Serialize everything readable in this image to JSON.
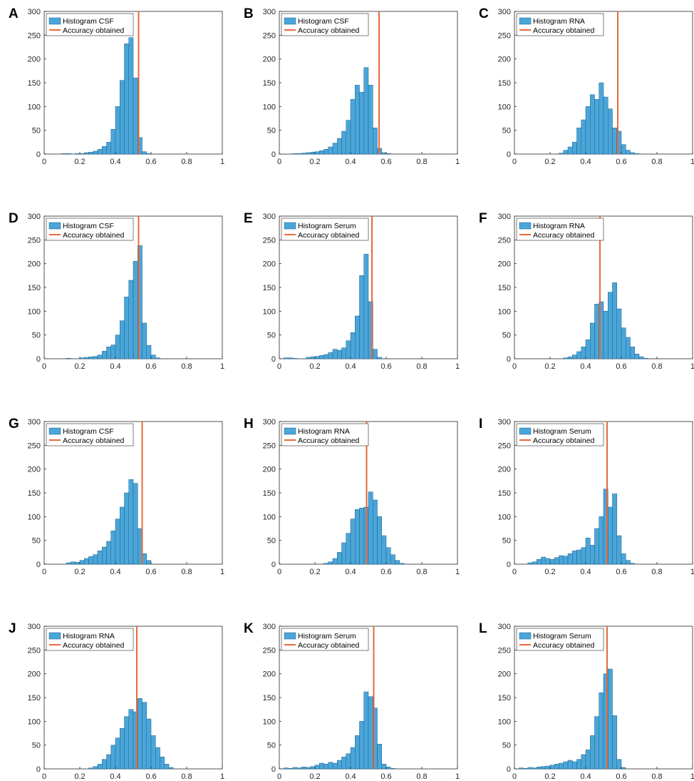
{
  "colors": {
    "bar_fill": "#4aa6d9",
    "bar_edge": "#1f5e8a",
    "accuracy_line": "#e8693a",
    "axis": "#262626"
  },
  "legend_line_label": "Accuracy obtained",
  "chart_data": [
    {
      "panel": "A",
      "type": "bar",
      "legend": [
        "Histogram CSF",
        "Accuracy obtained"
      ],
      "accuracy": 0.53,
      "bin_start": 0.1,
      "bin_width": 0.025,
      "counts": [
        1,
        1,
        0,
        1,
        1,
        3,
        4,
        6,
        10,
        16,
        25,
        52,
        100,
        155,
        232,
        245,
        160,
        35,
        5,
        1
      ],
      "xlim": [
        0,
        1
      ],
      "ylim": [
        0,
        300
      ],
      "xticks": [
        "0",
        "0.2",
        "0.4",
        "0.6",
        "0.8",
        "1"
      ],
      "yticks": [
        "0",
        "50",
        "100",
        "150",
        "200",
        "250",
        "300"
      ]
    },
    {
      "panel": "B",
      "type": "bar",
      "legend": [
        "Histogram CSF",
        "Accuracy obtained"
      ],
      "accuracy": 0.56,
      "bin_start": 0.075,
      "bin_width": 0.025,
      "counts": [
        1,
        1,
        2,
        3,
        4,
        5,
        7,
        10,
        15,
        23,
        33,
        48,
        71,
        115,
        145,
        130,
        182,
        145,
        55,
        12,
        3,
        1
      ],
      "xlim": [
        0,
        1
      ],
      "ylim": [
        0,
        300
      ],
      "xticks": [
        "0",
        "0.2",
        "0.4",
        "0.6",
        "0.8",
        "1"
      ],
      "yticks": [
        "0",
        "50",
        "100",
        "150",
        "200",
        "250",
        "300"
      ]
    },
    {
      "panel": "C",
      "type": "bar",
      "legend": [
        "Histogram RNA",
        "Accuracy obtained"
      ],
      "accuracy": 0.58,
      "bin_start": 0.25,
      "bin_width": 0.025,
      "counts": [
        2,
        8,
        15,
        25,
        55,
        72,
        100,
        125,
        115,
        150,
        120,
        95,
        55,
        48,
        20,
        8,
        3,
        1
      ],
      "xlim": [
        0,
        1
      ],
      "ylim": [
        0,
        300
      ],
      "xticks": [
        "0",
        "0.2",
        "0.4",
        "0.6",
        "0.8",
        "1"
      ],
      "yticks": [
        "0",
        "50",
        "100",
        "150",
        "200",
        "250",
        "300"
      ]
    },
    {
      "panel": "D",
      "type": "bar",
      "legend": [
        "Histogram CSF",
        "Accuracy obtained"
      ],
      "accuracy": 0.53,
      "bin_start": 0.125,
      "bin_width": 0.025,
      "counts": [
        1,
        0,
        0,
        2,
        3,
        4,
        5,
        8,
        16,
        25,
        29,
        50,
        80,
        130,
        165,
        205,
        238,
        75,
        28,
        8,
        2
      ],
      "xlim": [
        0,
        1
      ],
      "ylim": [
        0,
        300
      ],
      "xticks": [
        "0",
        "0.2",
        "0.4",
        "0.6",
        "0.8",
        "1"
      ],
      "yticks": [
        "0",
        "50",
        "100",
        "150",
        "200",
        "250",
        "300"
      ]
    },
    {
      "panel": "E",
      "type": "bar",
      "legend": [
        "Histogram Serum",
        "Accuracy obtained"
      ],
      "accuracy": 0.52,
      "bin_start": 0.025,
      "bin_width": 0.025,
      "counts": [
        2,
        2,
        1,
        0,
        0,
        3,
        4,
        5,
        7,
        9,
        13,
        20,
        18,
        23,
        38,
        55,
        90,
        175,
        220,
        120,
        20,
        3
      ],
      "xlim": [
        0,
        1
      ],
      "ylim": [
        0,
        300
      ],
      "xticks": [
        "0",
        "0.2",
        "0.4",
        "0.6",
        "0.8",
        "1"
      ],
      "yticks": [
        "0",
        "50",
        "100",
        "150",
        "200",
        "250",
        "300"
      ]
    },
    {
      "panel": "F",
      "type": "bar",
      "legend": [
        "Histogram RNA",
        "Accuracy obtained"
      ],
      "accuracy": 0.48,
      "bin_start": 0.275,
      "bin_width": 0.025,
      "counts": [
        2,
        4,
        8,
        15,
        25,
        40,
        75,
        115,
        120,
        100,
        140,
        160,
        105,
        65,
        45,
        25,
        10,
        4,
        1
      ],
      "xlim": [
        0,
        1
      ],
      "ylim": [
        0,
        300
      ],
      "xticks": [
        "0",
        "0.2",
        "0.4",
        "0.6",
        "0.8",
        "1"
      ],
      "yticks": [
        "0",
        "50",
        "100",
        "150",
        "200",
        "250",
        "300"
      ]
    },
    {
      "panel": "G",
      "type": "bar",
      "legend": [
        "Histogram CSF",
        "Accuracy obtained"
      ],
      "accuracy": 0.55,
      "bin_start": 0.125,
      "bin_width": 0.025,
      "counts": [
        3,
        5,
        4,
        8,
        12,
        16,
        20,
        28,
        36,
        48,
        70,
        95,
        120,
        150,
        178,
        170,
        75,
        22,
        8
      ],
      "xlim": [
        0,
        1
      ],
      "ylim": [
        0,
        300
      ],
      "xticks": [
        "0",
        "0.2",
        "0.4",
        "0.6",
        "0.8",
        "1"
      ],
      "yticks": [
        "0",
        "50",
        "100",
        "150",
        "200",
        "250",
        "300"
      ]
    },
    {
      "panel": "H",
      "type": "bar",
      "legend": [
        "Histogram RNA",
        "Accuracy obtained"
      ],
      "accuracy": 0.49,
      "bin_start": 0.25,
      "bin_width": 0.025,
      "counts": [
        2,
        5,
        12,
        25,
        45,
        65,
        95,
        115,
        118,
        120,
        152,
        135,
        100,
        60,
        35,
        20,
        8,
        2
      ],
      "xlim": [
        0,
        1
      ],
      "ylim": [
        0,
        300
      ],
      "xticks": [
        "0",
        "0.2",
        "0.4",
        "0.6",
        "0.8",
        "1"
      ],
      "yticks": [
        "0",
        "50",
        "100",
        "150",
        "200",
        "250",
        "300"
      ]
    },
    {
      "panel": "I",
      "type": "bar",
      "legend": [
        "Histogram Serum",
        "Accuracy obtained"
      ],
      "accuracy": 0.52,
      "bin_start": 0.075,
      "bin_width": 0.025,
      "counts": [
        3,
        5,
        10,
        15,
        12,
        10,
        14,
        18,
        17,
        22,
        28,
        30,
        35,
        55,
        40,
        75,
        100,
        158,
        120,
        148,
        60,
        22,
        8,
        2
      ],
      "xlim": [
        0,
        1
      ],
      "ylim": [
        0,
        300
      ],
      "xticks": [
        "0",
        "0.2",
        "0.4",
        "0.6",
        "0.8",
        "1"
      ],
      "yticks": [
        "0",
        "50",
        "100",
        "150",
        "200",
        "250",
        "300"
      ]
    },
    {
      "panel": "J",
      "type": "bar",
      "legend": [
        "Histogram RNA",
        "Accuracy obtained"
      ],
      "accuracy": 0.52,
      "bin_start": 0.25,
      "bin_width": 0.025,
      "counts": [
        2,
        5,
        10,
        20,
        30,
        50,
        65,
        85,
        110,
        125,
        120,
        148,
        140,
        105,
        70,
        45,
        25,
        10,
        3
      ],
      "xlim": [
        0,
        1
      ],
      "ylim": [
        0,
        300
      ],
      "xticks": [
        "0",
        "0.2",
        "0.4",
        "0.6",
        "0.8",
        "1"
      ],
      "yticks": [
        "0",
        "50",
        "100",
        "150",
        "200",
        "250",
        "300"
      ]
    },
    {
      "panel": "K",
      "type": "bar",
      "legend": [
        "Histogram Serum",
        "Accuracy obtained"
      ],
      "accuracy": 0.53,
      "bin_start": 0.025,
      "bin_width": 0.025,
      "counts": [
        2,
        1,
        3,
        2,
        4,
        3,
        5,
        8,
        12,
        10,
        14,
        12,
        18,
        25,
        32,
        45,
        70,
        100,
        162,
        152,
        128,
        52,
        10,
        4,
        1
      ],
      "xlim": [
        0,
        1
      ],
      "ylim": [
        0,
        300
      ],
      "xticks": [
        "0",
        "0.2",
        "0.4",
        "0.6",
        "0.8",
        "1"
      ],
      "yticks": [
        "0",
        "50",
        "100",
        "150",
        "200",
        "250",
        "300"
      ]
    },
    {
      "panel": "L",
      "type": "bar",
      "legend": [
        "Histogram Serum",
        "Accuracy obtained"
      ],
      "accuracy": 0.52,
      "bin_start": 0.025,
      "bin_width": 0.025,
      "counts": [
        2,
        1,
        3,
        2,
        4,
        5,
        6,
        8,
        10,
        12,
        15,
        18,
        15,
        20,
        30,
        40,
        70,
        110,
        160,
        200,
        210,
        112,
        20,
        3
      ],
      "xlim": [
        0,
        1
      ],
      "ylim": [
        0,
        300
      ],
      "xticks": [
        "0",
        "0.2",
        "0.4",
        "0.6",
        "0.8",
        "1"
      ],
      "yticks": [
        "0",
        "50",
        "100",
        "150",
        "200",
        "250",
        "300"
      ]
    }
  ]
}
